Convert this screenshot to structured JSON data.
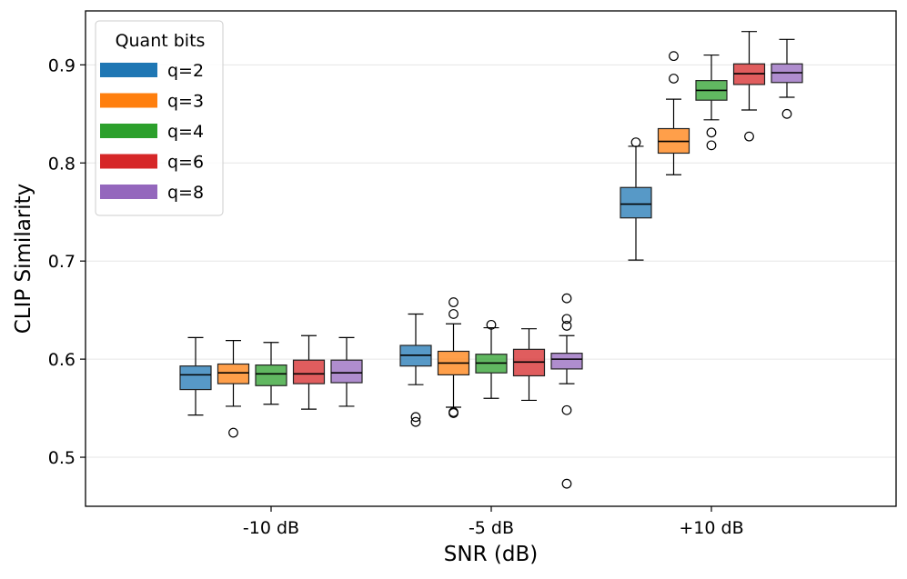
{
  "chart_data": {
    "type": "box",
    "title": "",
    "xlabel": "SNR (dB)",
    "ylabel": "CLIP Similarity",
    "ylim": [
      0.45,
      0.955
    ],
    "yticks": [
      0.5,
      0.6,
      0.7,
      0.8,
      0.9
    ],
    "ytick_labels": [
      "0.5",
      "0.6",
      "0.7",
      "0.8",
      "0.9"
    ],
    "grid": "horizontal",
    "categories": [
      "-10 dB",
      "-5 dB",
      "+10 dB"
    ],
    "legend": {
      "title": "Quant bits",
      "placement": "top-left"
    },
    "series": [
      {
        "name": "q=2",
        "color": "#1f77b4",
        "boxes": [
          {
            "whislo": 0.543,
            "q1": 0.569,
            "med": 0.584,
            "q3": 0.593,
            "whishi": 0.622,
            "fliers": []
          },
          {
            "whislo": 0.574,
            "q1": 0.593,
            "med": 0.604,
            "q3": 0.614,
            "whishi": 0.646,
            "fliers": [
              0.541,
              0.536
            ]
          },
          {
            "whislo": 0.701,
            "q1": 0.744,
            "med": 0.758,
            "q3": 0.775,
            "whishi": 0.817,
            "fliers": [
              0.821
            ]
          }
        ]
      },
      {
        "name": "q=3",
        "color": "#ff7f0e",
        "boxes": [
          {
            "whislo": 0.552,
            "q1": 0.575,
            "med": 0.586,
            "q3": 0.595,
            "whishi": 0.619,
            "fliers": [
              0.525
            ]
          },
          {
            "whislo": 0.551,
            "q1": 0.584,
            "med": 0.596,
            "q3": 0.608,
            "whishi": 0.636,
            "fliers": [
              0.546,
              0.545,
              0.646,
              0.658
            ]
          },
          {
            "whislo": 0.788,
            "q1": 0.81,
            "med": 0.822,
            "q3": 0.835,
            "whishi": 0.865,
            "fliers": [
              0.886,
              0.909
            ]
          }
        ]
      },
      {
        "name": "q=4",
        "color": "#2ca02c",
        "boxes": [
          {
            "whislo": 0.554,
            "q1": 0.573,
            "med": 0.585,
            "q3": 0.594,
            "whishi": 0.617,
            "fliers": []
          },
          {
            "whislo": 0.56,
            "q1": 0.586,
            "med": 0.596,
            "q3": 0.605,
            "whishi": 0.632,
            "fliers": [
              0.635
            ]
          },
          {
            "whislo": 0.844,
            "q1": 0.864,
            "med": 0.874,
            "q3": 0.884,
            "whishi": 0.91,
            "fliers": [
              0.831,
              0.818
            ]
          }
        ]
      },
      {
        "name": "q=6",
        "color": "#d62728",
        "boxes": [
          {
            "whislo": 0.549,
            "q1": 0.575,
            "med": 0.585,
            "q3": 0.599,
            "whishi": 0.624,
            "fliers": []
          },
          {
            "whislo": 0.558,
            "q1": 0.583,
            "med": 0.597,
            "q3": 0.61,
            "whishi": 0.631,
            "fliers": []
          },
          {
            "whislo": 0.854,
            "q1": 0.88,
            "med": 0.891,
            "q3": 0.901,
            "whishi": 0.934,
            "fliers": [
              0.827
            ]
          }
        ]
      },
      {
        "name": "q=8",
        "color": "#9467bd",
        "boxes": [
          {
            "whislo": 0.552,
            "q1": 0.576,
            "med": 0.586,
            "q3": 0.599,
            "whishi": 0.622,
            "fliers": []
          },
          {
            "whislo": 0.575,
            "q1": 0.59,
            "med": 0.6,
            "q3": 0.606,
            "whishi": 0.624,
            "fliers": [
              0.641,
              0.634,
              0.662,
              0.548,
              0.473
            ]
          },
          {
            "whislo": 0.867,
            "q1": 0.882,
            "med": 0.892,
            "q3": 0.901,
            "whishi": 0.926,
            "fliers": [
              0.85
            ]
          }
        ]
      }
    ]
  }
}
